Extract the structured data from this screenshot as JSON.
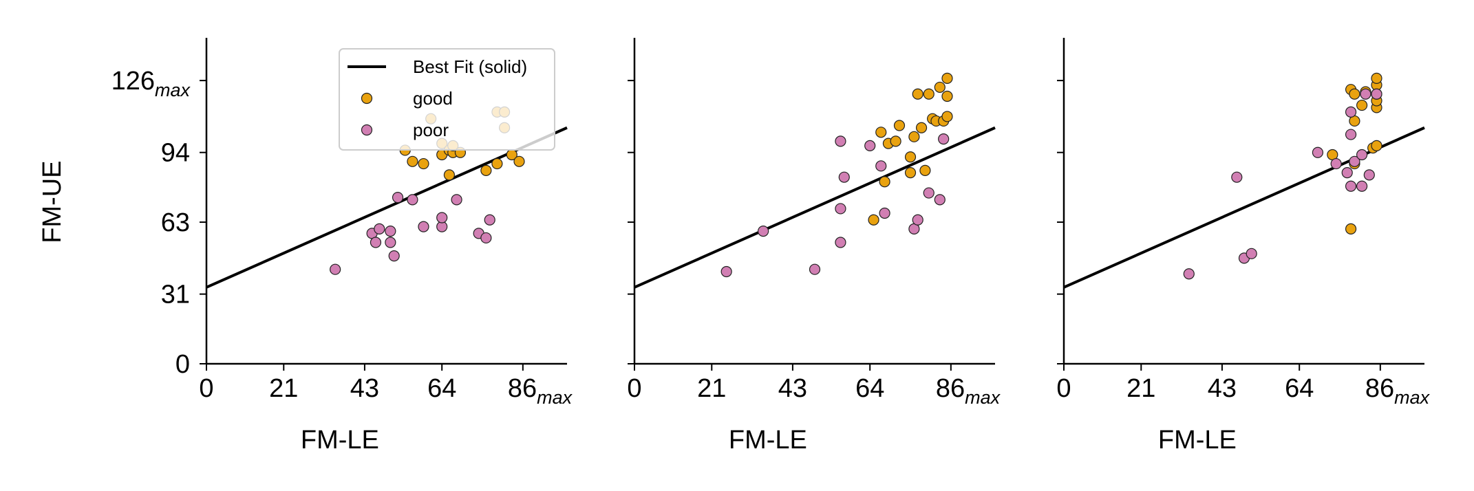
{
  "chart_data": {
    "type": "scatter",
    "panel_count": 3,
    "shared_y_axis": true,
    "xlabel": "FM-LE",
    "ylabel": "FM-UE",
    "x_ticks": [
      {
        "value": 0,
        "text": "0",
        "sub": ""
      },
      {
        "value": 21,
        "text": "21",
        "sub": ""
      },
      {
        "value": 43,
        "text": "43",
        "sub": ""
      },
      {
        "value": 64,
        "text": "64",
        "sub": ""
      },
      {
        "value": 86,
        "text": "86",
        "sub": "max"
      }
    ],
    "y_ticks": [
      {
        "value": 0,
        "text": "0",
        "sub": ""
      },
      {
        "value": 31,
        "text": "31",
        "sub": ""
      },
      {
        "value": 63,
        "text": "63",
        "sub": ""
      },
      {
        "value": 94,
        "text": "94",
        "sub": ""
      },
      {
        "value": 126,
        "text": "126",
        "sub": "max"
      }
    ],
    "xlim": [
      0,
      98
    ],
    "ylim": [
      0,
      145
    ],
    "grid": false,
    "colors": {
      "good": "#e9a20f",
      "poor": "#d17fb3",
      "fit": "#000000"
    },
    "legend": {
      "placement": "upper-right (first panel)",
      "entries": [
        {
          "label": "Best Fit (solid)",
          "kind": "line"
        },
        {
          "label": "good",
          "kind": "marker",
          "group": "good"
        },
        {
          "label": "poor",
          "kind": "marker",
          "group": "poor"
        }
      ]
    },
    "fit_line": {
      "x0": 0,
      "y0": 34,
      "x1": 98,
      "y1": 105
    },
    "panels": [
      {
        "good": [
          [
            54,
            95
          ],
          [
            56,
            90
          ],
          [
            59,
            89
          ],
          [
            61,
            109
          ],
          [
            64,
            98
          ],
          [
            64,
            93
          ],
          [
            66,
            95
          ],
          [
            66,
            84
          ],
          [
            67,
            94
          ],
          [
            67,
            97
          ],
          [
            69,
            94
          ],
          [
            76,
            86
          ],
          [
            79,
            89
          ],
          [
            79,
            112
          ],
          [
            81,
            112
          ],
          [
            81,
            105
          ],
          [
            83,
            93
          ],
          [
            85,
            90
          ]
        ],
        "poor": [
          [
            35,
            42
          ],
          [
            45,
            58
          ],
          [
            46,
            54
          ],
          [
            47,
            60
          ],
          [
            50,
            59
          ],
          [
            50,
            54
          ],
          [
            51,
            48
          ],
          [
            52,
            74
          ],
          [
            56,
            73
          ],
          [
            59,
            61
          ],
          [
            64,
            61
          ],
          [
            64,
            65
          ],
          [
            68,
            73
          ],
          [
            74,
            58
          ],
          [
            76,
            56
          ],
          [
            77,
            64
          ]
        ]
      },
      {
        "good": [
          [
            65,
            64
          ],
          [
            67,
            103
          ],
          [
            68,
            81
          ],
          [
            69,
            98
          ],
          [
            71,
            99
          ],
          [
            72,
            106
          ],
          [
            75,
            92
          ],
          [
            75,
            85
          ],
          [
            76,
            101
          ],
          [
            77,
            120
          ],
          [
            78,
            105
          ],
          [
            79,
            86
          ],
          [
            80,
            120
          ],
          [
            81,
            109
          ],
          [
            82,
            108
          ],
          [
            83,
            123
          ],
          [
            84,
            108
          ],
          [
            85,
            110
          ],
          [
            85,
            119
          ],
          [
            85,
            127
          ]
        ],
        "poor": [
          [
            25,
            41
          ],
          [
            35,
            59
          ],
          [
            49,
            42
          ],
          [
            56,
            54
          ],
          [
            56,
            69
          ],
          [
            56,
            99
          ],
          [
            57,
            83
          ],
          [
            64,
            97
          ],
          [
            67,
            88
          ],
          [
            68,
            67
          ],
          [
            76,
            60
          ],
          [
            77,
            64
          ],
          [
            80,
            76
          ],
          [
            83,
            73
          ],
          [
            84,
            100
          ]
        ]
      },
      {
        "good": [
          [
            73,
            93
          ],
          [
            78,
            60
          ],
          [
            78,
            122
          ],
          [
            79,
            89
          ],
          [
            79,
            108
          ],
          [
            79,
            120
          ],
          [
            81,
            115
          ],
          [
            82,
            121
          ],
          [
            84,
            96
          ],
          [
            85,
            114
          ],
          [
            85,
            117
          ],
          [
            85,
            120
          ],
          [
            85,
            124
          ],
          [
            85,
            127
          ],
          [
            85,
            97
          ]
        ],
        "poor": [
          [
            34,
            40
          ],
          [
            47,
            83
          ],
          [
            49,
            47
          ],
          [
            51,
            49
          ],
          [
            69,
            94
          ],
          [
            74,
            89
          ],
          [
            77,
            85
          ],
          [
            78,
            79
          ],
          [
            78,
            102
          ],
          [
            78,
            112
          ],
          [
            79,
            90
          ],
          [
            81,
            79
          ],
          [
            81,
            93
          ],
          [
            82,
            120
          ],
          [
            83,
            84
          ],
          [
            85,
            120
          ]
        ]
      }
    ]
  }
}
